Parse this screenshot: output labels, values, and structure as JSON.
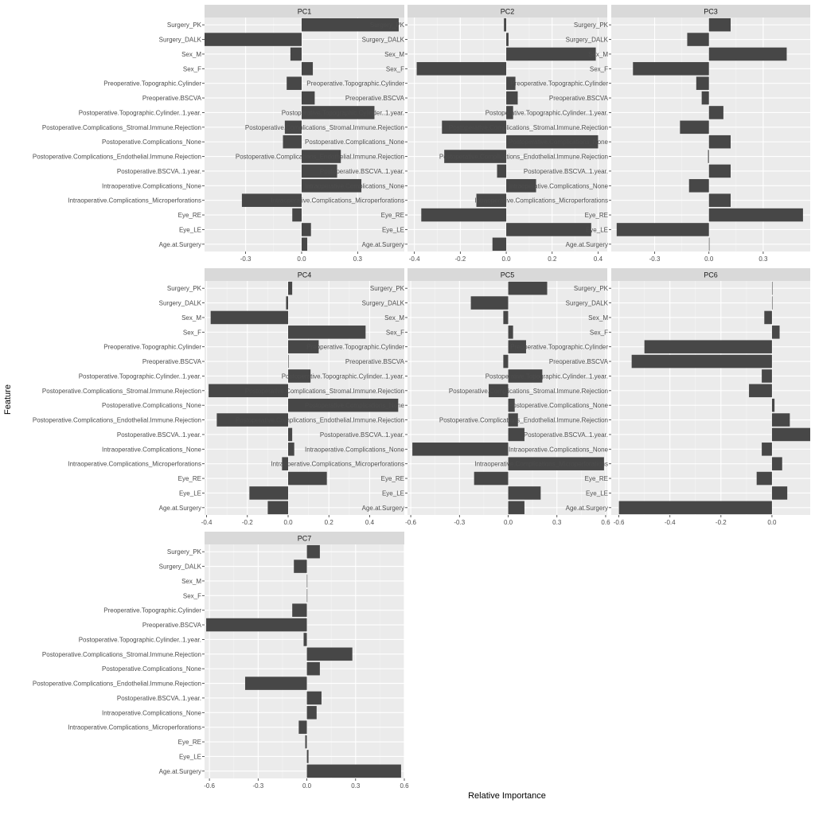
{
  "chart_data": {
    "type": "bar",
    "orientation": "horizontal",
    "xlabel": "Relative Importance",
    "ylabel": "Feature",
    "grid": true,
    "categories": [
      "Surgery_PK",
      "Surgery_DALK",
      "Sex_M",
      "Sex_F",
      "Preoperative.Topographic.Cylinder",
      "Preoperative.BSCVA",
      "Postoperative.Topographic.Cylinder..1.year.",
      "Postoperative.Complications_Stromal.Immune.Rejection",
      "Postoperative.Complications_None",
      "Postoperative.Complications_Endothelial.Immune.Rejection",
      "Postoperative.BSCVA..1.year.",
      "Intraoperative.Complications_None",
      "Intraoperative.Complications_Microperforations",
      "Eye_RE",
      "Eye_LE",
      "Age.at.Surgery"
    ],
    "panels": [
      {
        "name": "PC1",
        "xlim": [
          -0.52,
          0.55
        ],
        "ticks": [
          -0.3,
          0.0,
          0.3
        ],
        "tick_labels": [
          "-0.3",
          "0.0",
          "0.3"
        ],
        "values": [
          0.52,
          -0.52,
          -0.06,
          0.06,
          -0.08,
          0.07,
          0.39,
          -0.09,
          -0.1,
          0.21,
          0.19,
          0.32,
          -0.32,
          -0.05,
          0.05,
          0.03
        ]
      },
      {
        "name": "PC2",
        "xlim": [
          -0.43,
          0.44
        ],
        "ticks": [
          -0.4,
          -0.2,
          0.0,
          0.2,
          0.4
        ],
        "tick_labels": [
          "-0.4",
          "-0.2",
          "0.0",
          "0.2",
          "0.4"
        ],
        "values": [
          -0.01,
          0.01,
          0.39,
          -0.39,
          0.04,
          0.05,
          0.03,
          -0.28,
          0.4,
          -0.27,
          -0.04,
          0.13,
          -0.13,
          -0.37,
          0.37,
          -0.06
        ]
      },
      {
        "name": "PC3",
        "xlim": [
          -0.54,
          0.56
        ],
        "ticks": [
          -0.3,
          0.0,
          0.3
        ],
        "tick_labels": [
          "-0.3",
          "0.0",
          "0.3"
        ],
        "values": [
          0.12,
          -0.12,
          0.43,
          -0.42,
          -0.07,
          -0.04,
          0.08,
          -0.16,
          0.12,
          -0.005,
          0.12,
          -0.11,
          0.12,
          0.52,
          -0.51,
          0.003
        ]
      },
      {
        "name": "PC4",
        "xlim": [
          -0.41,
          0.57
        ],
        "ticks": [
          -0.4,
          -0.2,
          0.0,
          0.2,
          0.4
        ],
        "tick_labels": [
          "-0.4",
          "-0.2",
          "0.0",
          "0.2",
          "0.4"
        ],
        "values": [
          0.02,
          -0.01,
          -0.38,
          0.38,
          0.15,
          0.0,
          0.11,
          -0.39,
          0.54,
          -0.35,
          0.02,
          0.03,
          -0.03,
          0.19,
          -0.19,
          -0.1
        ]
      },
      {
        "name": "PC5",
        "xlim": [
          -0.62,
          0.61
        ],
        "ticks": [
          -0.6,
          -0.3,
          0.0,
          0.3,
          0.6
        ],
        "tick_labels": [
          "-0.6",
          "-0.3",
          "0.0",
          "0.3",
          "0.6"
        ],
        "values": [
          0.24,
          -0.23,
          -0.03,
          0.03,
          0.11,
          -0.03,
          0.21,
          -0.12,
          0.04,
          0.06,
          0.1,
          -0.59,
          0.59,
          -0.21,
          0.2,
          0.1
        ]
      },
      {
        "name": "PC6",
        "xlim": [
          -0.63,
          0.15
        ],
        "ticks": [
          -0.6,
          -0.4,
          -0.2,
          0.0
        ],
        "tick_labels": [
          "-0.6",
          "-0.4",
          "-0.2",
          "0.0"
        ],
        "values": [
          0.0,
          0.0,
          -0.03,
          0.03,
          -0.5,
          -0.55,
          -0.04,
          -0.09,
          0.01,
          0.07,
          0.15,
          -0.04,
          0.04,
          -0.06,
          0.06,
          -0.6
        ]
      },
      {
        "name": "PC7",
        "xlim": [
          -0.63,
          0.6
        ],
        "ticks": [
          -0.6,
          -0.3,
          0.0,
          0.3,
          0.6
        ],
        "tick_labels": [
          "-0.6",
          "-0.3",
          "0.0",
          "0.3",
          "0.6"
        ],
        "values": [
          0.08,
          -0.08,
          0.0,
          0.0,
          -0.09,
          -0.62,
          -0.02,
          0.28,
          0.08,
          -0.38,
          0.09,
          0.06,
          -0.05,
          -0.01,
          0.01,
          0.58
        ]
      }
    ]
  }
}
